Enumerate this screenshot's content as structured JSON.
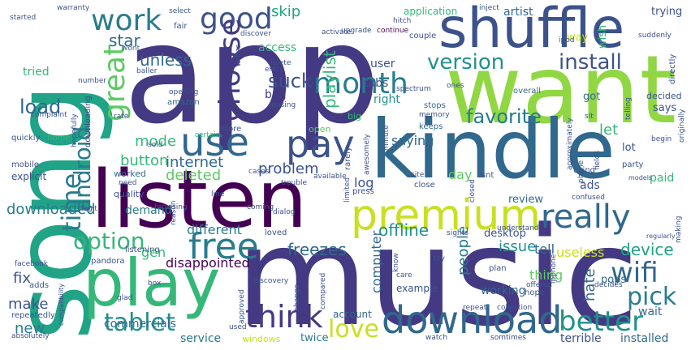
{
  "colors": {
    "background": "#ffffff",
    "dark_purple": "#440154",
    "indigo": "#443983",
    "slate_blue": "#3b528b",
    "steel_blue": "#31688e",
    "teal_blue": "#287c8e",
    "teal": "#21918c",
    "sea_green": "#20a386",
    "green": "#35b779",
    "light_green": "#5ec962",
    "lime": "#90d743",
    "yellow_green": "#c8e020"
  },
  "words": [
    "app",
    "music",
    "song",
    "want",
    "kindle",
    "listen",
    "shuffle",
    "play",
    "premium",
    "download",
    "month",
    "work",
    "good",
    "use",
    "pay",
    "free",
    "think",
    "really",
    "choose",
    "great",
    "wifi",
    "version",
    "install",
    "tablet",
    "love",
    "better",
    "pick",
    "time",
    "option",
    "android",
    "favorite",
    "downloaded",
    "mode",
    "problem",
    "offline",
    "device",
    "internet",
    "suck",
    "load",
    "freezes",
    "issue",
    "skip",
    "star",
    "unless",
    "playlist",
    "button",
    "deleted",
    "let",
    "disappointed",
    "fix",
    "make",
    "new",
    "different",
    "gen",
    "useless",
    "people",
    "computer",
    "tell",
    "thing",
    "hate",
    "saying",
    "day",
    "log",
    "user",
    "tabs",
    "access",
    "bug",
    "right",
    "artist",
    "application",
    "commercials",
    "service",
    "twice",
    "windows",
    "demand",
    "quality",
    "worked",
    "ads",
    "paid",
    "review",
    "working",
    "example",
    "desktop",
    "account",
    "terrible",
    "installed",
    "wait",
    "pops",
    "trying",
    "wish",
    "way",
    "got",
    "says",
    "lot",
    "decided",
    "tried",
    "warranty",
    "started",
    "select",
    "inject",
    "hitch",
    "continue",
    "upgrade",
    "couple",
    "ipod",
    "suddenly",
    "fair",
    "wont",
    "baller",
    "number",
    "opening",
    "amazon",
    "leasing",
    "spectrum",
    "ones",
    "overall",
    "telling",
    "directly",
    "originally",
    "complaint",
    "downloading",
    "hopefully",
    "rate",
    "quickly",
    "home",
    "store",
    "certain",
    "memory",
    "sit",
    "approximately",
    "keeps",
    "big",
    "open",
    "stops",
    "sold",
    "explicit",
    "mobile",
    "cases",
    "trouble",
    "available",
    "rarely",
    "awesomely",
    "minute",
    "isnt",
    "close",
    "closed",
    "site",
    "phone",
    "fields",
    "using",
    "begin",
    "models",
    "party",
    "need",
    "legit",
    "line",
    "coming",
    "dialog",
    "limited",
    "press",
    "sights",
    "understand",
    "confused",
    "making",
    "regularly",
    "facebook",
    "pandora",
    "listening",
    "loved",
    "know",
    "try",
    "plan",
    "ipphone",
    "adds",
    "compatibility",
    "box",
    "reason",
    "discovery",
    "care",
    "offered",
    "decides",
    "glad",
    "approved",
    "change",
    "compared",
    "hope",
    "collection",
    "repeat",
    "repeatedly",
    "absolutely",
    "used",
    "watch",
    "somtimes",
    "entry",
    "activate",
    "delete",
    "discover",
    "writes",
    "browsing",
    "element"
  ]
}
